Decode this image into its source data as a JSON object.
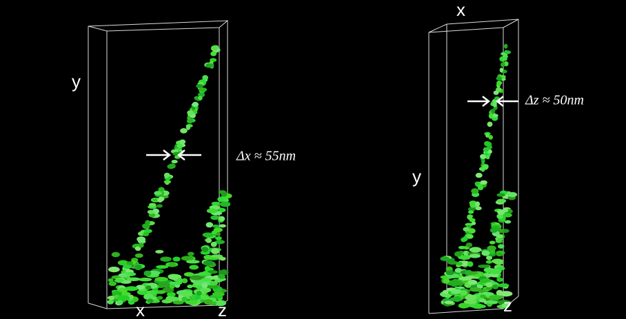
{
  "left_panel": {
    "axis_y": "y",
    "axis_x": "x",
    "axis_z": "z",
    "annotation": "Δx ≈ 55nm"
  },
  "right_panel": {
    "axis_x": "x",
    "axis_y": "y",
    "axis_z": "z",
    "annotation": "Δz ≈ 50nm"
  }
}
